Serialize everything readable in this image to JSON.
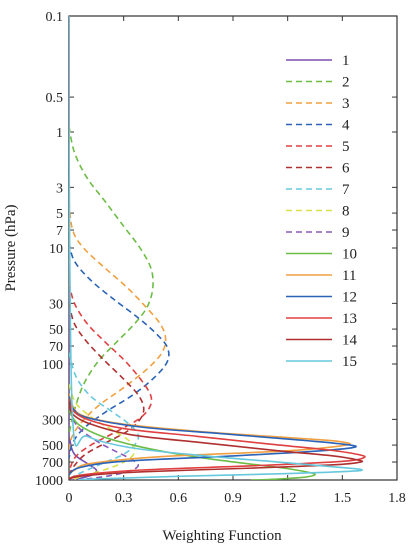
{
  "chart_data": {
    "type": "line",
    "xlabel": "Weighting Function",
    "ylabel": "Pressure (hPa)",
    "xlim": [
      0,
      1.8
    ],
    "ylim": [
      0.1,
      1000
    ],
    "y_scale": "log",
    "y_reversed": true,
    "grid": false,
    "legend_placement": "right",
    "x_ticks": [
      0,
      0.3,
      0.6,
      0.9,
      1.2,
      1.5,
      1.8
    ],
    "x_tick_labels": [
      "0",
      "0.3",
      "0.6",
      "0.9",
      "1.2",
      "1.5",
      "1.8"
    ],
    "y_ticks": [
      0.1,
      0.5,
      1,
      3,
      5,
      7,
      10,
      30,
      50,
      70,
      100,
      300,
      500,
      700,
      1000
    ],
    "y_tick_labels": [
      "0.1",
      "0.5",
      "1",
      "3",
      "5",
      "7",
      "10",
      "30",
      "50",
      "70",
      "100",
      "300",
      "500",
      "700",
      "1000"
    ],
    "series": [
      {
        "name": "1",
        "color": "#7b4fb0",
        "dash": "solid",
        "points": [
          [
            0,
            0.1
          ],
          [
            0,
            300
          ],
          [
            0.005,
            450
          ],
          [
            0.03,
            600
          ],
          [
            0.1,
            720
          ],
          [
            0.15,
            820
          ],
          [
            0.13,
            900
          ],
          [
            0.07,
            960
          ],
          [
            0.02,
            1000
          ]
        ]
      },
      {
        "name": "2",
        "color": "#6cbd45",
        "dash": "dashed",
        "points": [
          [
            0,
            0.9
          ],
          [
            0.03,
            1.5
          ],
          [
            0.1,
            2.5
          ],
          [
            0.2,
            4
          ],
          [
            0.3,
            6.5
          ],
          [
            0.39,
            10
          ],
          [
            0.45,
            15
          ],
          [
            0.46,
            22
          ],
          [
            0.43,
            32
          ],
          [
            0.36,
            45
          ],
          [
            0.26,
            65
          ],
          [
            0.16,
            95
          ],
          [
            0.08,
            150
          ],
          [
            0.03,
            250
          ],
          [
            0,
            400
          ]
        ]
      },
      {
        "name": "3",
        "color": "#f0a040",
        "dash": "dashed",
        "points": [
          [
            0,
            4
          ],
          [
            0.02,
            7
          ],
          [
            0.08,
            10
          ],
          [
            0.2,
            15
          ],
          [
            0.32,
            22
          ],
          [
            0.42,
            32
          ],
          [
            0.5,
            45
          ],
          [
            0.53,
            60
          ],
          [
            0.51,
            80
          ],
          [
            0.43,
            110
          ],
          [
            0.3,
            160
          ],
          [
            0.16,
            230
          ],
          [
            0.06,
            330
          ],
          [
            0.01,
            450
          ],
          [
            0,
            600
          ]
        ]
      },
      {
        "name": "4",
        "color": "#2a63b8",
        "dash": "dashed",
        "points": [
          [
            0,
            9
          ],
          [
            0.03,
            13
          ],
          [
            0.12,
            19
          ],
          [
            0.25,
            28
          ],
          [
            0.38,
            40
          ],
          [
            0.48,
            55
          ],
          [
            0.54,
            72
          ],
          [
            0.54,
            95
          ],
          [
            0.47,
            130
          ],
          [
            0.35,
            185
          ],
          [
            0.2,
            260
          ],
          [
            0.08,
            360
          ],
          [
            0.02,
            480
          ],
          [
            0,
            650
          ]
        ]
      },
      {
        "name": "5",
        "color": "#e04040",
        "dash": "dashed",
        "points": [
          [
            0,
            20
          ],
          [
            0.03,
            30
          ],
          [
            0.1,
            45
          ],
          [
            0.2,
            65
          ],
          [
            0.31,
            95
          ],
          [
            0.4,
            140
          ],
          [
            0.45,
            190
          ],
          [
            0.44,
            240
          ],
          [
            0.38,
            300
          ],
          [
            0.25,
            390
          ],
          [
            0.12,
            500
          ],
          [
            0.04,
            620
          ],
          [
            0.01,
            760
          ],
          [
            0,
            900
          ]
        ]
      },
      {
        "name": "6",
        "color": "#b03030",
        "dash": "dashed",
        "points": [
          [
            0,
            30
          ],
          [
            0.03,
            45
          ],
          [
            0.1,
            65
          ],
          [
            0.2,
            95
          ],
          [
            0.3,
            135
          ],
          [
            0.38,
            185
          ],
          [
            0.41,
            240
          ],
          [
            0.39,
            300
          ],
          [
            0.32,
            380
          ],
          [
            0.2,
            480
          ],
          [
            0.09,
            600
          ],
          [
            0.03,
            750
          ],
          [
            0,
            900
          ]
        ]
      },
      {
        "name": "7",
        "color": "#66c8dd",
        "dash": "dashed",
        "points": [
          [
            0,
            80
          ],
          [
            0.04,
            130
          ],
          [
            0.12,
            190
          ],
          [
            0.24,
            260
          ],
          [
            0.33,
            330
          ],
          [
            0.38,
            410
          ],
          [
            0.36,
            500
          ],
          [
            0.3,
            600
          ],
          [
            0.2,
            700
          ],
          [
            0.1,
            820
          ],
          [
            0.03,
            920
          ],
          [
            0,
            1000
          ]
        ]
      },
      {
        "name": "8",
        "color": "#d8e04a",
        "dash": "dashed",
        "points": [
          [
            0,
            150
          ],
          [
            0.04,
            220
          ],
          [
            0.14,
            300
          ],
          [
            0.25,
            380
          ],
          [
            0.33,
            460
          ],
          [
            0.36,
            550
          ],
          [
            0.34,
            640
          ],
          [
            0.27,
            740
          ],
          [
            0.17,
            840
          ],
          [
            0.07,
            930
          ],
          [
            0.02,
            1000
          ]
        ]
      },
      {
        "name": "9",
        "color": "#8a5ab8",
        "dash": "dashed",
        "points": [
          [
            0,
            250
          ],
          [
            0.05,
            350
          ],
          [
            0.15,
            460
          ],
          [
            0.25,
            560
          ],
          [
            0.34,
            660
          ],
          [
            0.38,
            750
          ],
          [
            0.33,
            840
          ],
          [
            0.22,
            920
          ],
          [
            0.1,
            980
          ],
          [
            0.05,
            1000
          ]
        ]
      },
      {
        "name": "10",
        "color": "#6cbd45",
        "dash": "solid",
        "points": [
          [
            0,
            250
          ],
          [
            0.05,
            330
          ],
          [
            0.18,
            420
          ],
          [
            0.35,
            500
          ],
          [
            0.55,
            580
          ],
          [
            0.78,
            660
          ],
          [
            1.0,
            730
          ],
          [
            1.18,
            790
          ],
          [
            1.3,
            850
          ],
          [
            1.35,
            900
          ],
          [
            1.28,
            950
          ],
          [
            1.1,
            990
          ],
          [
            1.0,
            1000
          ]
        ]
      },
      {
        "name": "11",
        "color": "#f0a040",
        "dash": "solid",
        "points": [
          [
            0,
            180
          ],
          [
            0.02,
            230
          ],
          [
            0.08,
            280
          ],
          [
            0.3,
            330
          ],
          [
            0.7,
            380
          ],
          [
            1.1,
            420
          ],
          [
            1.38,
            450
          ],
          [
            1.5,
            470
          ],
          [
            1.52,
            500
          ],
          [
            1.2,
            560
          ],
          [
            0.5,
            630
          ],
          [
            0.12,
            720
          ],
          [
            0.03,
            820
          ],
          [
            0,
            900
          ]
        ]
      },
      {
        "name": "12",
        "color": "#2a63b8",
        "dash": "solid",
        "points": [
          [
            0,
            190
          ],
          [
            0.02,
            240
          ],
          [
            0.1,
            290
          ],
          [
            0.4,
            350
          ],
          [
            0.85,
            400
          ],
          [
            1.25,
            450
          ],
          [
            1.5,
            490
          ],
          [
            1.57,
            520
          ],
          [
            1.38,
            560
          ],
          [
            0.9,
            620
          ],
          [
            0.3,
            690
          ],
          [
            0.06,
            780
          ],
          [
            0,
            900
          ]
        ]
      },
      {
        "name": "13",
        "color": "#e04040",
        "dash": "solid",
        "points": [
          [
            0,
            200
          ],
          [
            0.02,
            250
          ],
          [
            0.1,
            300
          ],
          [
            0.3,
            360
          ],
          [
            0.7,
            420
          ],
          [
            1.1,
            490
          ],
          [
            1.42,
            550
          ],
          [
            1.58,
            600
          ],
          [
            1.62,
            640
          ],
          [
            1.5,
            690
          ],
          [
            1.05,
            750
          ],
          [
            0.4,
            820
          ],
          [
            0.08,
            900
          ],
          [
            0,
            970
          ]
        ]
      },
      {
        "name": "14",
        "color": "#b03030",
        "dash": "solid",
        "points": [
          [
            0,
            210
          ],
          [
            0.02,
            270
          ],
          [
            0.12,
            330
          ],
          [
            0.35,
            410
          ],
          [
            0.75,
            480
          ],
          [
            1.15,
            560
          ],
          [
            1.45,
            620
          ],
          [
            1.58,
            670
          ],
          [
            1.6,
            700
          ],
          [
            1.45,
            740
          ],
          [
            1.0,
            790
          ],
          [
            0.4,
            850
          ],
          [
            0.08,
            920
          ],
          [
            0,
            980
          ]
        ]
      },
      {
        "name": "15",
        "color": "#66c8dd",
        "dash": "solid",
        "points": [
          [
            0,
            0.1
          ],
          [
            0,
            1
          ],
          [
            0.02,
            300
          ],
          [
            0.1,
            420
          ],
          [
            0.35,
            530
          ],
          [
            0.75,
            620
          ],
          [
            1.15,
            700
          ],
          [
            1.45,
            770
          ],
          [
            1.6,
            810
          ],
          [
            1.55,
            840
          ],
          [
            1.2,
            880
          ],
          [
            0.6,
            930
          ],
          [
            0.15,
            980
          ],
          [
            0.05,
            1000
          ]
        ]
      }
    ]
  }
}
